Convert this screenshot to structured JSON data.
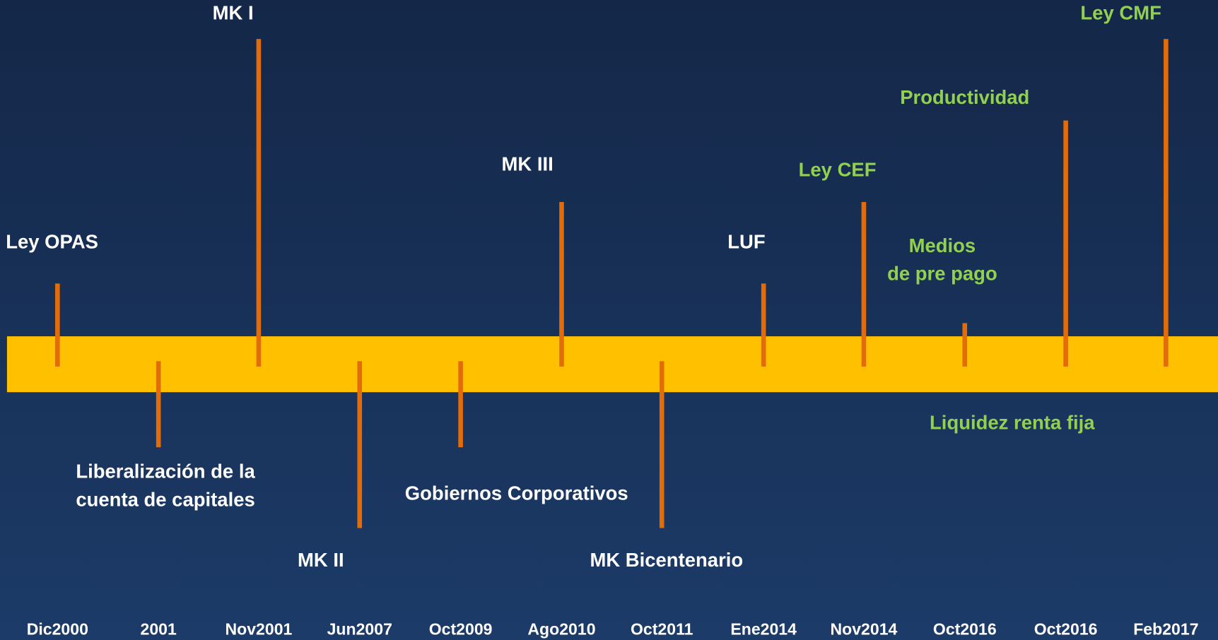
{
  "events": [
    {
      "date": "Dic2000",
      "label": [
        "Ley OPAS"
      ],
      "color": "#ffffff"
    },
    {
      "date": "2001",
      "label": [
        "Liberalización de la",
        "cuenta de capitales"
      ],
      "color": "#ffffff"
    },
    {
      "date": "Nov2001",
      "label": [
        "MK I"
      ],
      "color": "#ffffff"
    },
    {
      "date": "Jun2007",
      "label": [
        "MK II"
      ],
      "color": "#ffffff"
    },
    {
      "date": "Oct2009",
      "label": [
        "Gobiernos Corporativos"
      ],
      "color": "#ffffff"
    },
    {
      "date": "Ago2010",
      "label": [
        "MK III"
      ],
      "color": "#ffffff"
    },
    {
      "date": "Oct2011",
      "label": [
        "MK Bicentenario"
      ],
      "color": "#ffffff"
    },
    {
      "date": "Ene2014",
      "label": [
        "LUF"
      ],
      "color": "#ffffff"
    },
    {
      "date": "Nov2014",
      "label": [
        "Ley CEF"
      ],
      "color": "#92d050"
    },
    {
      "date": "Oct2016",
      "label": [
        "Medios",
        "de pre pago"
      ],
      "color": "#92d050"
    },
    {
      "date": "Oct2016",
      "label": [
        "Productividad"
      ],
      "color": "#92d050"
    },
    {
      "date": "Feb2017",
      "label": [
        "Ley CMF"
      ],
      "color": "#92d050"
    }
  ],
  "notes": [
    {
      "text": "Liquidez renta fija",
      "color": "#92d050"
    }
  ]
}
